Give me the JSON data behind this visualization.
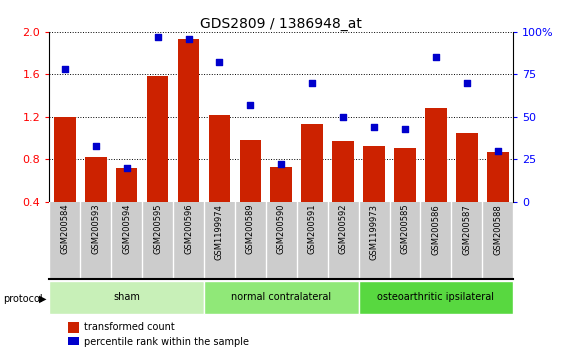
{
  "title": "GDS2809 / 1386948_at",
  "categories": [
    "GSM200584",
    "GSM200593",
    "GSM200594",
    "GSM200595",
    "GSM200596",
    "GSM1199974",
    "GSM200589",
    "GSM200590",
    "GSM200591",
    "GSM200592",
    "GSM1199973",
    "GSM200585",
    "GSM200586",
    "GSM200587",
    "GSM200588"
  ],
  "bar_values": [
    1.2,
    0.82,
    0.72,
    1.58,
    1.93,
    1.22,
    0.98,
    0.73,
    1.13,
    0.97,
    0.92,
    0.9,
    1.28,
    1.05,
    0.87
  ],
  "dot_values": [
    78,
    33,
    20,
    97,
    96,
    82,
    57,
    22,
    70,
    50,
    44,
    43,
    85,
    70,
    30
  ],
  "bar_color": "#cc2200",
  "dot_color": "#0000cc",
  "ylim_left": [
    0.4,
    2.0
  ],
  "ylim_right": [
    0,
    100
  ],
  "yticks_left": [
    0.4,
    0.8,
    1.2,
    1.6,
    2.0
  ],
  "yticks_right": [
    0,
    25,
    50,
    75,
    100
  ],
  "ytick_labels_right": [
    "0",
    "25",
    "50",
    "75",
    "100%"
  ],
  "groups": [
    {
      "label": "sham",
      "start": 0,
      "end": 5,
      "color": "#c8f0b8"
    },
    {
      "label": "normal contralateral",
      "start": 5,
      "end": 10,
      "color": "#90e878"
    },
    {
      "label": "osteoarthritic ipsilateral",
      "start": 10,
      "end": 15,
      "color": "#58d840"
    }
  ],
  "protocol_label": "protocol",
  "legend_bar_label": "transformed count",
  "legend_dot_label": "percentile rank within the sample",
  "plot_bg": "#ffffff",
  "title_fontsize": 10,
  "bar_width": 0.7,
  "xlabel_bg": "#cccccc",
  "xlabel_divider": "#ffffff"
}
